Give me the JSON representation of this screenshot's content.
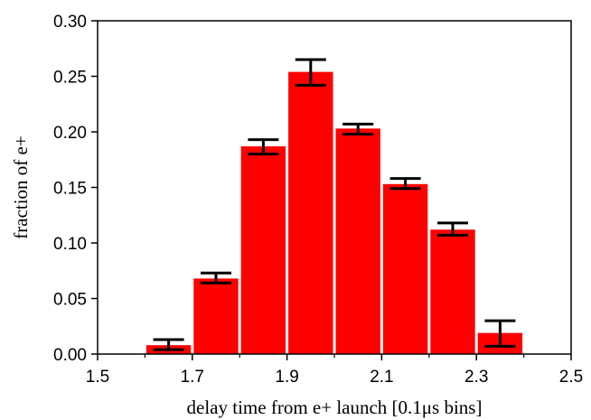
{
  "chart_data": {
    "type": "bar",
    "title": "",
    "xlabel": "delay time from e+ launch [0.1μs bins]",
    "ylabel": "fraction of e+",
    "xlim": [
      1.5,
      2.5
    ],
    "ylim": [
      0,
      0.3
    ],
    "xticks": [
      "1.5",
      "1.7",
      "1.9",
      "2.1",
      "2.3",
      "2.5"
    ],
    "yticks": [
      "0.00",
      "0.05",
      "0.10",
      "0.15",
      "0.20",
      "0.25",
      "0.30"
    ],
    "grid": false,
    "bin_width": 0.1,
    "bins": [
      {
        "x_start": 1.6,
        "value": 0.008,
        "err_low": 0.004,
        "err_high": 0.013
      },
      {
        "x_start": 1.7,
        "value": 0.068,
        "err_low": 0.064,
        "err_high": 0.073
      },
      {
        "x_start": 1.8,
        "value": 0.187,
        "err_low": 0.18,
        "err_high": 0.193
      },
      {
        "x_start": 1.9,
        "value": 0.254,
        "err_low": 0.242,
        "err_high": 0.265
      },
      {
        "x_start": 2.0,
        "value": 0.203,
        "err_low": 0.198,
        "err_high": 0.207
      },
      {
        "x_start": 2.1,
        "value": 0.153,
        "err_low": 0.149,
        "err_high": 0.158
      },
      {
        "x_start": 2.2,
        "value": 0.112,
        "err_low": 0.107,
        "err_high": 0.118
      },
      {
        "x_start": 2.3,
        "value": 0.019,
        "err_low": 0.007,
        "err_high": 0.03
      }
    ],
    "colors": {
      "bar": "#ff0000",
      "errorbar": "#000000",
      "axis": "#000000"
    }
  }
}
